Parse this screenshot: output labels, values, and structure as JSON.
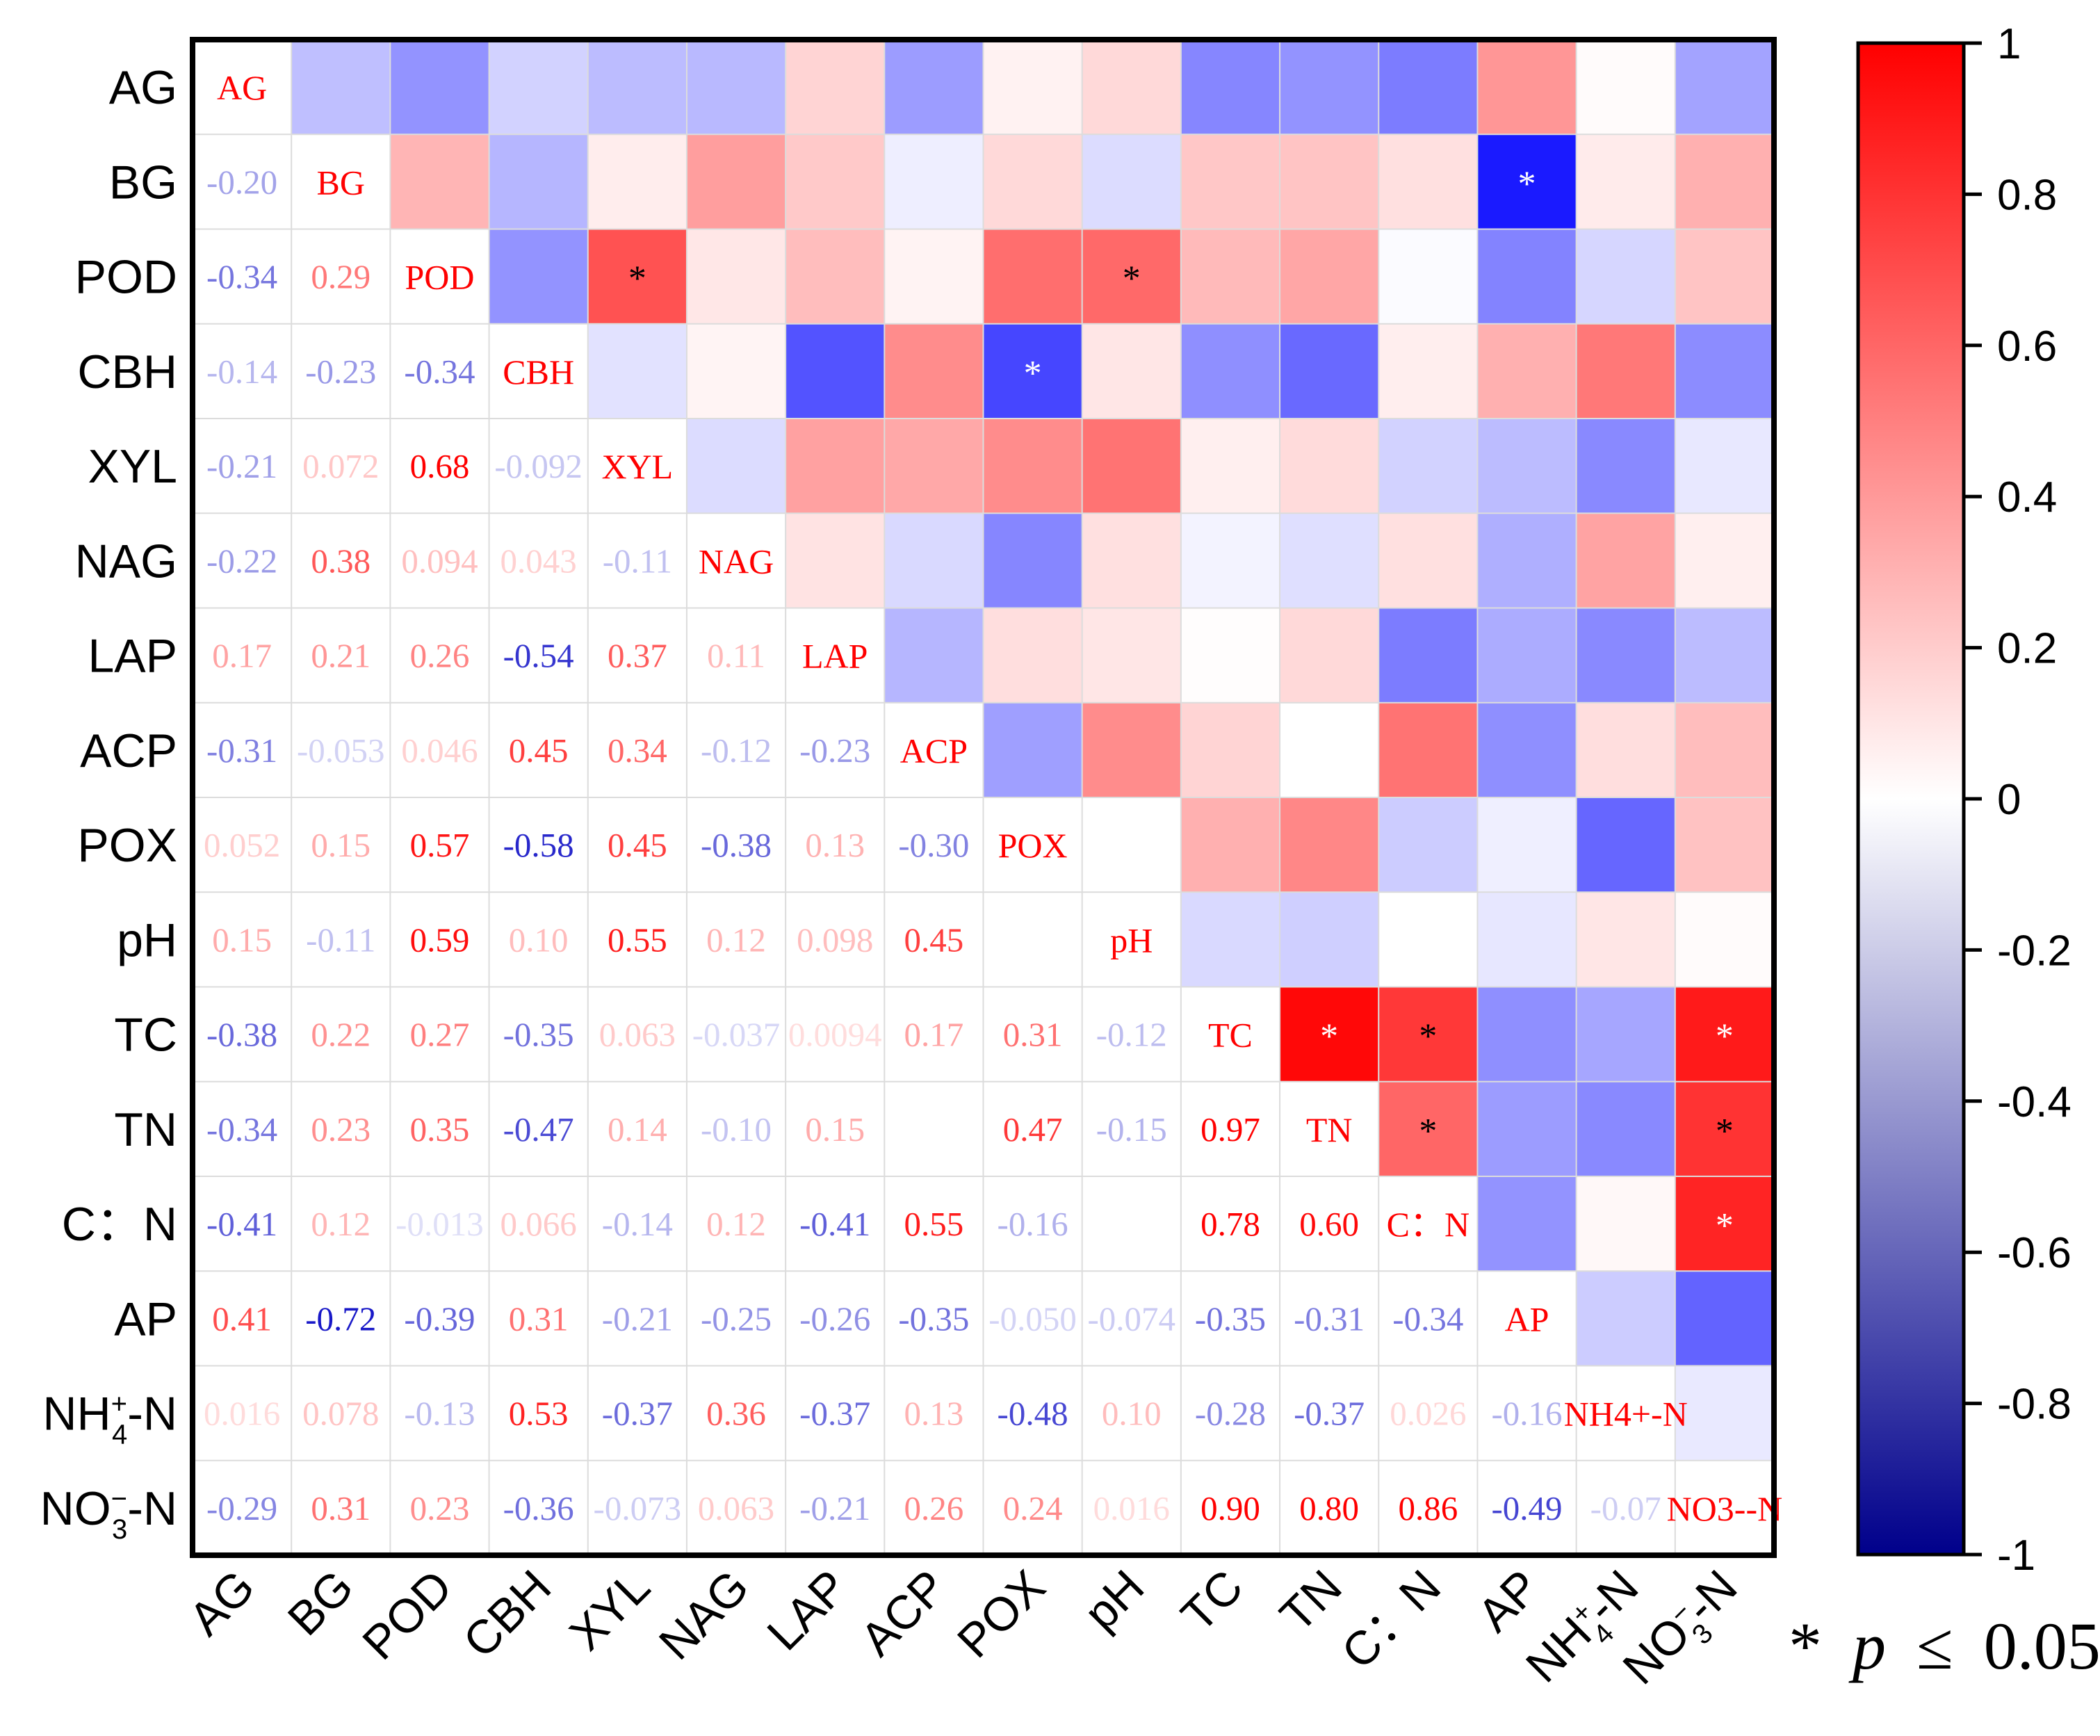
{
  "chart_data": {
    "type": "heatmap",
    "variables": [
      "AG",
      "BG",
      "POD",
      "CBH",
      "XYL",
      "NAG",
      "LAP",
      "ACP",
      "POX",
      "pH",
      "TC",
      "TN",
      "C：N",
      "AP",
      "NH4+-N",
      "NO3--N"
    ],
    "row_labels": [
      {
        "main": "AG"
      },
      {
        "main": "BG"
      },
      {
        "main": "POD"
      },
      {
        "main": "CBH"
      },
      {
        "main": "XYL"
      },
      {
        "main": "NAG"
      },
      {
        "main": "LAP"
      },
      {
        "main": "ACP"
      },
      {
        "main": "POX"
      },
      {
        "main": "pH"
      },
      {
        "main": "TC"
      },
      {
        "main": "TN"
      },
      {
        "main": "C：N"
      },
      {
        "main": "AP"
      },
      {
        "main": "NH",
        "sup": "+",
        "sub": "4",
        "tail": "-N"
      },
      {
        "main": "NO",
        "sup": "−",
        "sub": "3",
        "tail": "-N"
      }
    ],
    "col_labels": [
      {
        "main": "AG"
      },
      {
        "main": "BG"
      },
      {
        "main": "POD"
      },
      {
        "main": "CBH"
      },
      {
        "main": "XYL"
      },
      {
        "main": "NAG"
      },
      {
        "main": "LAP"
      },
      {
        "main": "ACP"
      },
      {
        "main": "POX"
      },
      {
        "main": "pH"
      },
      {
        "main": "TC"
      },
      {
        "main": "TN"
      },
      {
        "main": "C：N"
      },
      {
        "main": "AP"
      },
      {
        "main": "NH",
        "sup": "+",
        "sub": "4",
        "tail": "-N"
      },
      {
        "main": "NO",
        "sup": "−",
        "sub": "3",
        "tail": "-N"
      }
    ],
    "diagonal_labels": [
      "AG",
      "BG",
      "POD",
      "CBH",
      "XYL",
      "NAG",
      "LAP",
      "ACP",
      "POX",
      "pH",
      "TC",
      "TN",
      "C：N",
      "AP",
      "NH4+-N",
      "NO3--N"
    ],
    "lower_text": [
      [],
      [
        "-0.20"
      ],
      [
        "-0.34",
        "0.29"
      ],
      [
        "-0.14",
        "-0.23",
        "-0.34"
      ],
      [
        "-0.21",
        "0.072",
        "0.68",
        "-0.092"
      ],
      [
        "-0.22",
        "0.38",
        "0.094",
        "0.043",
        "-0.11"
      ],
      [
        "0.17",
        "0.21",
        "0.26",
        "-0.54",
        "0.37",
        "0.11"
      ],
      [
        "-0.31",
        "-0.053",
        "0.046",
        "0.45",
        "0.34",
        "-0.12",
        "-0.23"
      ],
      [
        "0.052",
        "0.15",
        "0.57",
        "-0.58",
        "0.45",
        "-0.38",
        "0.13",
        "-0.30"
      ],
      [
        "0.15",
        "-0.11",
        "0.59",
        "0.10",
        "0.55",
        "0.12",
        "0.098",
        "0.45",
        ""
      ],
      [
        "-0.38",
        "0.22",
        "0.27",
        "-0.35",
        "0.063",
        "-0.037",
        "0.0094",
        "0.17",
        "0.31",
        "-0.12"
      ],
      [
        "-0.34",
        "0.23",
        "0.35",
        "-0.47",
        "0.14",
        "-0.10",
        "0.15",
        "",
        "0.47",
        "-0.15",
        "0.97"
      ],
      [
        "-0.41",
        "0.12",
        "-0.013",
        "0.066",
        "-0.14",
        "0.12",
        "-0.41",
        "0.55",
        "-0.16",
        "",
        "0.78",
        "0.60"
      ],
      [
        "0.41",
        "-0.72",
        "-0.39",
        "0.31",
        "-0.21",
        "-0.25",
        "-0.26",
        "-0.35",
        "-0.050",
        "-0.074",
        "-0.35",
        "-0.31",
        "-0.34"
      ],
      [
        "0.016",
        "0.078",
        "-0.13",
        "0.53",
        "-0.37",
        "0.36",
        "-0.37",
        "0.13",
        "-0.48",
        "0.10",
        "-0.28",
        "-0.37",
        "0.026",
        "-0.16"
      ],
      [
        "-0.29",
        "0.31",
        "0.23",
        "-0.36",
        "-0.073",
        "0.063",
        "-0.21",
        "0.26",
        "0.24",
        "0.016",
        "0.90",
        "0.80",
        "0.86",
        "-0.49",
        "-0.07"
      ]
    ],
    "upper_values": [
      [
        null,
        -0.2,
        -0.34,
        -0.14,
        -0.21,
        -0.22,
        0.17,
        -0.31,
        0.052,
        0.15,
        -0.38,
        -0.34,
        -0.41,
        0.41,
        0.016,
        -0.29
      ],
      [
        null,
        null,
        0.29,
        -0.23,
        0.072,
        0.38,
        0.21,
        -0.053,
        0.15,
        -0.11,
        0.22,
        0.23,
        0.12,
        -0.72,
        0.078,
        0.31
      ],
      [
        null,
        null,
        null,
        -0.34,
        0.68,
        0.094,
        0.26,
        0.046,
        0.57,
        0.59,
        0.27,
        0.35,
        -0.013,
        -0.39,
        -0.13,
        0.23
      ],
      [
        null,
        null,
        null,
        null,
        -0.092,
        0.043,
        -0.54,
        0.45,
        -0.58,
        0.1,
        -0.35,
        -0.47,
        0.066,
        0.31,
        0.53,
        -0.36
      ],
      [
        null,
        null,
        null,
        null,
        null,
        -0.11,
        0.37,
        0.34,
        0.45,
        0.55,
        0.063,
        0.14,
        -0.14,
        -0.21,
        -0.37,
        -0.073
      ],
      [
        null,
        null,
        null,
        null,
        null,
        null,
        0.11,
        -0.12,
        -0.38,
        0.12,
        -0.037,
        -0.1,
        0.12,
        -0.25,
        0.36,
        0.063
      ],
      [
        null,
        null,
        null,
        null,
        null,
        null,
        null,
        -0.23,
        0.13,
        0.098,
        0.0094,
        0.15,
        -0.41,
        -0.26,
        -0.37,
        -0.21
      ],
      [
        null,
        null,
        null,
        null,
        null,
        null,
        null,
        null,
        -0.3,
        0.45,
        0.17,
        0.0,
        0.55,
        -0.35,
        0.13,
        0.26
      ],
      [
        null,
        null,
        null,
        null,
        null,
        null,
        null,
        null,
        null,
        0.0,
        0.31,
        0.47,
        -0.16,
        -0.05,
        -0.48,
        0.24
      ],
      [
        null,
        null,
        null,
        null,
        null,
        null,
        null,
        null,
        null,
        null,
        -0.12,
        -0.15,
        0.0,
        -0.074,
        0.1,
        0.016
      ],
      [
        null,
        null,
        null,
        null,
        null,
        null,
        null,
        null,
        null,
        null,
        null,
        0.97,
        0.78,
        -0.35,
        -0.28,
        0.9
      ],
      [
        null,
        null,
        null,
        null,
        null,
        null,
        null,
        null,
        null,
        null,
        null,
        null,
        0.6,
        -0.31,
        -0.37,
        0.8
      ],
      [
        null,
        null,
        null,
        null,
        null,
        null,
        null,
        null,
        null,
        null,
        null,
        null,
        null,
        -0.34,
        0.026,
        0.86
      ],
      [
        null,
        null,
        null,
        null,
        null,
        null,
        null,
        null,
        null,
        null,
        null,
        null,
        null,
        null,
        -0.16,
        -0.49
      ],
      [
        null,
        null,
        null,
        null,
        null,
        null,
        null,
        null,
        null,
        null,
        null,
        null,
        null,
        null,
        null,
        -0.07
      ],
      [
        null,
        null,
        null,
        null,
        null,
        null,
        null,
        null,
        null,
        null,
        null,
        null,
        null,
        null,
        null,
        null
      ]
    ],
    "significant": [
      [
        1,
        13
      ],
      [
        2,
        4
      ],
      [
        2,
        9
      ],
      [
        3,
        8
      ],
      [
        10,
        11
      ],
      [
        10,
        12
      ],
      [
        10,
        15
      ],
      [
        11,
        12
      ],
      [
        11,
        15
      ],
      [
        12,
        15
      ]
    ],
    "significance_marker": "*",
    "colorbar": {
      "ticks": [
        "1",
        "0.8",
        "0.6",
        "0.4",
        "0.2",
        "0",
        "-0.2",
        "-0.4",
        "-0.6",
        "-0.8",
        "-1"
      ],
      "range": [
        -1,
        1
      ],
      "colors": {
        "negative": "#00008b",
        "mid_negative": "#0000ff",
        "zero": "#ffffff",
        "positive": "#ff0000"
      }
    },
    "footnote": {
      "star": "*",
      "p": "p",
      "le": "≤",
      "value": "0.05"
    }
  }
}
